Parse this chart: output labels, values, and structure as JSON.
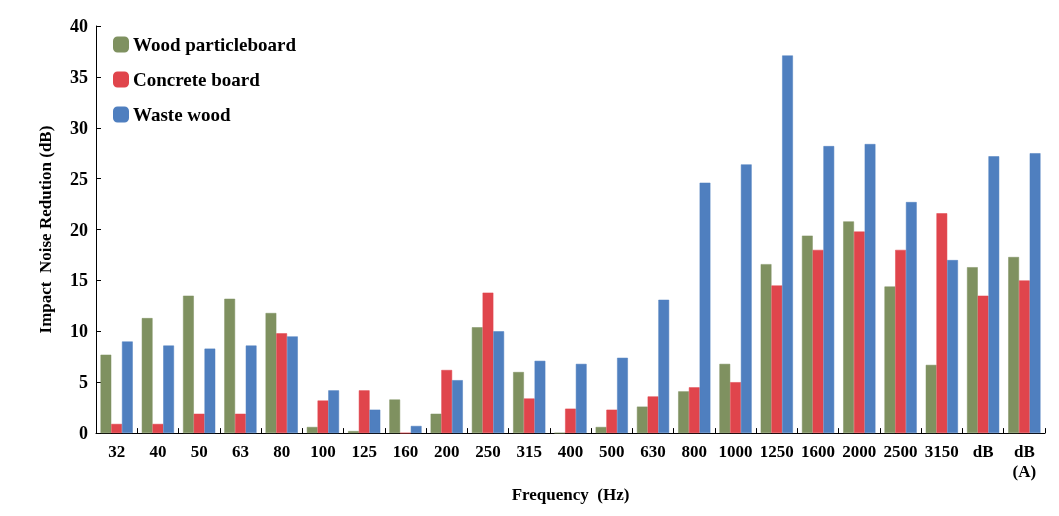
{
  "chart_data": {
    "type": "bar",
    "xlabel": "Frequency  (Hz)",
    "ylabel": "Impact  Noise Redution (dB)",
    "categories": [
      "32",
      "40",
      "50",
      "63",
      "80",
      "100",
      "125",
      "160",
      "200",
      "250",
      "315",
      "400",
      "500",
      "630",
      "800",
      "1000",
      "1250",
      "1600",
      "2000",
      "2500",
      "3150",
      "dB",
      "dB\n(A)"
    ],
    "series": [
      {
        "name": "Wood particleboard",
        "color": "#7f9160",
        "values": [
          7.7,
          11.3,
          13.5,
          13.2,
          11.8,
          0.6,
          0.2,
          3.3,
          1.9,
          10.4,
          6.0,
          0,
          0.6,
          2.6,
          4.1,
          6.8,
          16.6,
          19.4,
          20.8,
          14.4,
          6.7,
          16.3,
          17.3
        ]
      },
      {
        "name": "Concrete board",
        "color": "#e0454c",
        "values": [
          0.9,
          0.9,
          1.9,
          1.9,
          9.8,
          3.2,
          4.2,
          0,
          6.2,
          13.8,
          3.4,
          2.4,
          2.3,
          3.6,
          4.5,
          5.0,
          14.5,
          18.0,
          19.8,
          18.0,
          21.6,
          13.5,
          15.0
        ]
      },
      {
        "name": "Waste wood",
        "color": "#4f7fbf",
        "values": [
          9.0,
          8.6,
          8.3,
          8.6,
          9.5,
          4.2,
          2.3,
          0.7,
          5.2,
          10.0,
          7.1,
          6.8,
          7.4,
          13.1,
          24.6,
          26.4,
          37.1,
          28.2,
          28.4,
          22.7,
          17.0,
          27.2,
          27.5
        ]
      }
    ],
    "ylim": [
      0,
      40
    ],
    "yticks": [
      0,
      5,
      10,
      15,
      20,
      25,
      30,
      35,
      40
    ],
    "grid": false,
    "legend": "top left"
  }
}
